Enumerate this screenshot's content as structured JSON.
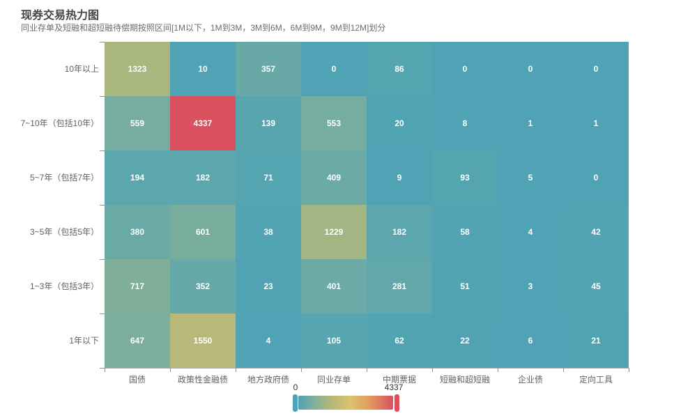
{
  "title": "现券交易热力图",
  "subtitle": "同业存单及短融和超短融待偿期按照区间[1M以下，1M到3M，3M到6M，6M到9M，9M到12M]划分",
  "chart_data": {
    "type": "heatmap",
    "title": "现券交易热力图",
    "subtitle": "同业存单及短融和超短融待偿期按照区间[1M以下，1M到3M，3M到6M，6M到9M，9M到12M]划分",
    "x_categories": [
      "国债",
      "政策性金融债",
      "地方政府债",
      "同业存单",
      "中期票据",
      "短融和超短融",
      "企业债",
      "定向工具"
    ],
    "y_categories": [
      "10年以上",
      "7~10年（包括10年）",
      "5~7年（包括7年）",
      "3~5年（包括5年）",
      "1~3年（包括3年）",
      "1年以下"
    ],
    "rows": [
      [
        1323,
        10,
        357,
        0,
        86,
        0,
        0,
        0
      ],
      [
        559,
        4337,
        139,
        553,
        20,
        8,
        1,
        1
      ],
      [
        194,
        182,
        71,
        409,
        9,
        93,
        5,
        0
      ],
      [
        380,
        601,
        38,
        1229,
        182,
        58,
        4,
        42
      ],
      [
        717,
        352,
        23,
        401,
        281,
        51,
        3,
        45
      ],
      [
        647,
        1550,
        4,
        105,
        62,
        22,
        6,
        21
      ]
    ],
    "value_min": 0,
    "value_max": 4337,
    "colorscale": [
      {
        "t": 0,
        "color": "#4fa3b4"
      },
      {
        "t": 0.13,
        "color": "#76ada0"
      },
      {
        "t": 0.305,
        "color": "#a9b67e"
      },
      {
        "t": 0.357,
        "color": "#b8b879"
      },
      {
        "t": 0.55,
        "color": "#ddc36c"
      },
      {
        "t": 0.75,
        "color": "#e39a60"
      },
      {
        "t": 1,
        "color": "#d9505f"
      }
    ],
    "cell_label_color": "#ffffff",
    "axis_label_color": "#606060",
    "legend_position": "bottom-center",
    "grid": false
  },
  "legend": {
    "min_label": "0",
    "max_label": "4337",
    "min_color": "#4fa3b4",
    "max_color": "#d9505f"
  }
}
